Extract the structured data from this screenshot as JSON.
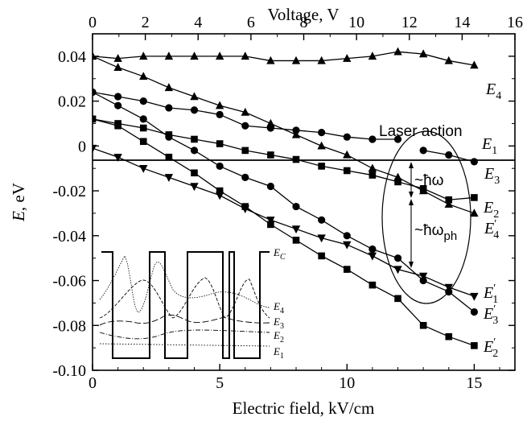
{
  "chart_data": {
    "type": "line",
    "xlabel": "Electric field, kV/cm",
    "ylabel_var": "E",
    "ylabel_unit": ", eV",
    "top_xlabel": "Voltage, V",
    "xlim": [
      0,
      16.6
    ],
    "ylim": [
      -0.1,
      0.05
    ],
    "top_xlim": [
      0,
      16
    ],
    "xticks": [
      "0",
      "5",
      "10",
      "15"
    ],
    "xtick_values": [
      0,
      5,
      10,
      15
    ],
    "top_xticks": [
      "0",
      "2",
      "4",
      "6",
      "8",
      "10",
      "12",
      "14",
      "16"
    ],
    "top_xtick_values": [
      0,
      2,
      4,
      6,
      8,
      10,
      12,
      14,
      16
    ],
    "yticks": [
      "0.04",
      "0.02",
      "0",
      "-0.02",
      "-0.04",
      "-0.06",
      "-0.08",
      "-0.10"
    ],
    "ytick_values": [
      0.04,
      0.02,
      0,
      -0.02,
      -0.04,
      -0.06,
      -0.08,
      -0.1
    ],
    "zero_line": true,
    "series": [
      {
        "name": "E4",
        "marker": "triangle-up",
        "x": [
          0,
          1,
          2,
          3,
          4,
          5,
          6,
          7,
          8,
          9,
          10,
          11,
          12,
          13,
          14,
          15
        ],
        "y": [
          0.04,
          0.039,
          0.04,
          0.04,
          0.04,
          0.04,
          0.04,
          0.038,
          0.038,
          0.038,
          0.039,
          0.04,
          0.042,
          0.041,
          0.038,
          0.036
        ]
      },
      {
        "name": "E1",
        "marker": "circle",
        "x": [
          0,
          1,
          2,
          3,
          4,
          5,
          6,
          7,
          8,
          9,
          10,
          11,
          12
        ],
        "y": [
          0.024,
          0.022,
          0.02,
          0.017,
          0.016,
          0.014,
          0.009,
          0.008,
          0.007,
          0.006,
          0.004,
          0.003,
          0.003
        ]
      },
      {
        "name": "E3",
        "marker": "circle",
        "x": [
          13,
          14,
          15
        ],
        "y": [
          -0.002,
          -0.004,
          -0.007
        ]
      },
      {
        "name": "E2",
        "marker": "square",
        "x": [
          0,
          1,
          2,
          3,
          4,
          5,
          6,
          7,
          8,
          9,
          10,
          11,
          12,
          13,
          14,
          15
        ],
        "y": [
          0.012,
          0.01,
          0.008,
          0.005,
          0.003,
          0.001,
          -0.002,
          -0.004,
          -0.006,
          -0.009,
          -0.011,
          -0.013,
          -0.016,
          -0.019,
          -0.024,
          -0.023
        ]
      },
      {
        "name": "E4'",
        "marker": "triangle-up",
        "x": [
          0,
          1,
          2,
          3,
          4,
          5,
          6,
          7,
          8,
          9,
          10,
          11,
          12,
          13,
          14,
          15
        ],
        "y": [
          0.04,
          0.035,
          0.031,
          0.026,
          0.022,
          0.018,
          0.015,
          0.01,
          0.005,
          0.0,
          -0.004,
          -0.01,
          -0.014,
          -0.02,
          -0.026,
          -0.03
        ]
      },
      {
        "name": "E3'",
        "marker": "circle",
        "x": [
          0,
          1,
          2,
          3,
          4,
          5,
          6,
          7,
          8,
          9,
          10,
          11,
          12,
          13,
          14,
          15
        ],
        "y": [
          0.024,
          0.018,
          0.012,
          0.004,
          -0.002,
          -0.009,
          -0.014,
          -0.018,
          -0.027,
          -0.033,
          -0.04,
          -0.046,
          -0.05,
          -0.06,
          -0.065,
          -0.074
        ]
      },
      {
        "name": "E1'",
        "marker": "triangle-down",
        "x": [
          0,
          1,
          2,
          3,
          4,
          5,
          6,
          7,
          8,
          9,
          10,
          11,
          12,
          13,
          14,
          15
        ],
        "y": [
          -0.001,
          -0.005,
          -0.01,
          -0.014,
          -0.018,
          -0.022,
          -0.028,
          -0.033,
          -0.037,
          -0.041,
          -0.044,
          -0.049,
          -0.055,
          -0.058,
          -0.063,
          -0.067
        ]
      },
      {
        "name": "E2'",
        "marker": "square",
        "x": [
          0,
          1,
          2,
          3,
          4,
          5,
          6,
          7,
          8,
          9,
          10,
          11,
          12,
          13,
          14,
          15
        ],
        "y": [
          0.012,
          0.009,
          0.002,
          -0.005,
          -0.012,
          -0.02,
          -0.027,
          -0.035,
          -0.042,
          -0.049,
          -0.055,
          -0.062,
          -0.068,
          -0.08,
          -0.085,
          -0.089
        ]
      }
    ],
    "curve_labels": [
      {
        "base": "E",
        "sub": "4",
        "prime": false
      },
      {
        "base": "E",
        "sub": "1",
        "prime": false
      },
      {
        "base": "E",
        "sub": "3",
        "prime": false
      },
      {
        "base": "E",
        "sub": "2",
        "prime": false
      },
      {
        "base": "E",
        "sub": "4",
        "prime": true
      },
      {
        "base": "E",
        "sub": "1",
        "prime": true
      },
      {
        "base": "E",
        "sub": "3",
        "prime": true
      },
      {
        "base": "E",
        "sub": "2",
        "prime": true
      }
    ],
    "annotations": {
      "laser_action": "Laser action",
      "hbar_omega": "~ħω",
      "hbar_omega_ph_main": "~ħω",
      "hbar_omega_ph_sub": "ph"
    },
    "inset": {
      "labels": [
        "E",
        "E",
        "E",
        "E",
        "E"
      ],
      "subs": [
        "C",
        "4",
        "3",
        "2",
        "1"
      ]
    }
  }
}
